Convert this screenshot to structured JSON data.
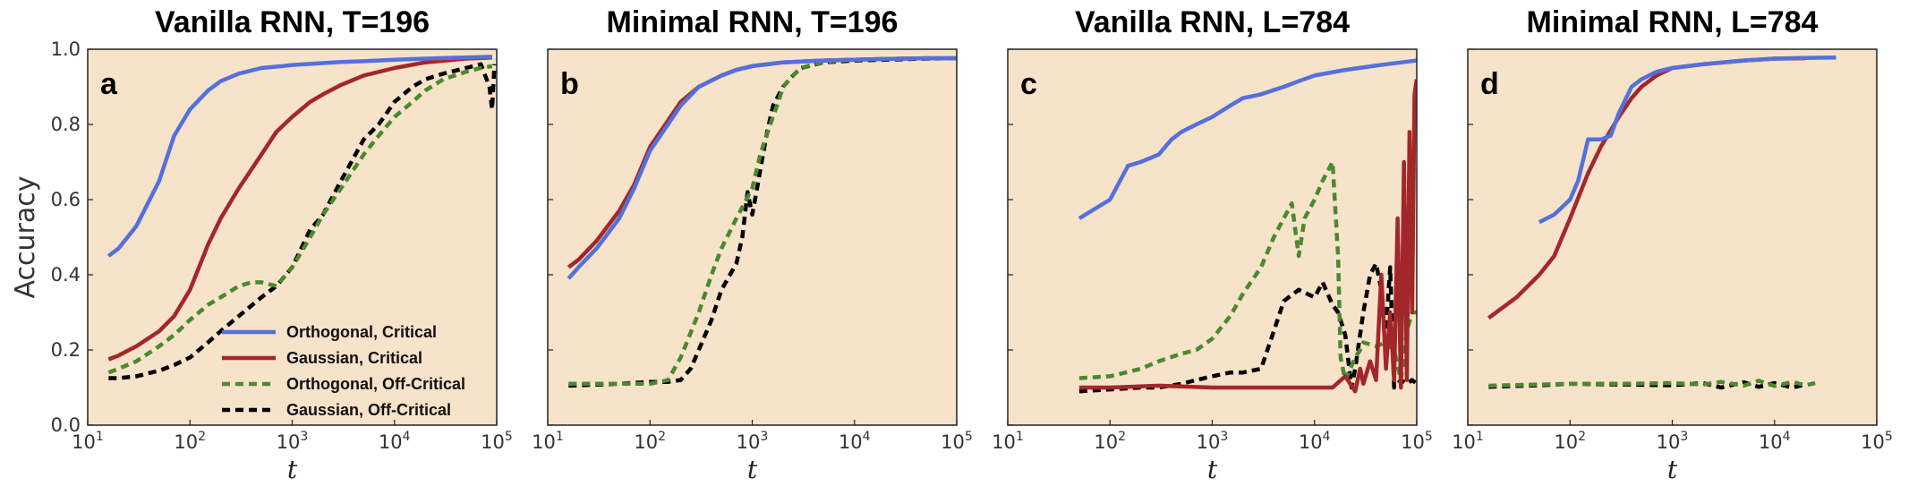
{
  "figure": {
    "background": "#ffffff",
    "plot_background": "#f7e2ca",
    "ylabel": "Accuracy",
    "xlabel": "t"
  },
  "colors": {
    "Orthogonal, Critical": "#5470db",
    "Gaussian, Critical": "#a3272a",
    "Orthogonal, Off-Critical": "#4a8a2c",
    "Gaussian, Off-Critical": "#000000"
  },
  "legend": {
    "panel": 0,
    "placement": "lower-right",
    "entries": [
      {
        "label": "Orthogonal, Critical",
        "dashed": false
      },
      {
        "label": "Gaussian, Critical",
        "dashed": false
      },
      {
        "label": "Orthogonal, Off-Critical",
        "dashed": true
      },
      {
        "label": "Gaussian, Off-Critical",
        "dashed": true
      }
    ]
  },
  "chart_data": [
    {
      "type": "line",
      "title": "Vanilla RNN, T=196",
      "panel_label": "a",
      "xscale": "log",
      "xlim": [
        10,
        100000
      ],
      "ylim": [
        0.0,
        1.0
      ],
      "xticks": [
        10,
        100,
        1000,
        10000,
        100000
      ],
      "yticks": [
        0.0,
        0.2,
        0.4,
        0.6,
        0.8,
        1.0
      ],
      "show_yticklabels": true,
      "grid": false,
      "series": [
        {
          "name": "Orthogonal, Critical",
          "dashed": false,
          "x": [
            16,
            20,
            30,
            50,
            70,
            100,
            150,
            200,
            300,
            500,
            800,
            1000,
            2000,
            3000,
            5000,
            10000,
            20000,
            50000,
            90000
          ],
          "y": [
            0.45,
            0.47,
            0.53,
            0.65,
            0.77,
            0.84,
            0.89,
            0.915,
            0.935,
            0.95,
            0.955,
            0.958,
            0.963,
            0.966,
            0.968,
            0.972,
            0.975,
            0.978,
            0.98
          ]
        },
        {
          "name": "Gaussian, Critical",
          "dashed": false,
          "x": [
            16,
            20,
            30,
            50,
            70,
            100,
            150,
            200,
            300,
            500,
            700,
            1000,
            1500,
            2000,
            3000,
            5000,
            10000,
            20000,
            50000,
            90000
          ],
          "y": [
            0.175,
            0.185,
            0.21,
            0.25,
            0.29,
            0.36,
            0.48,
            0.55,
            0.63,
            0.72,
            0.78,
            0.82,
            0.86,
            0.88,
            0.905,
            0.93,
            0.95,
            0.965,
            0.975,
            0.978
          ]
        },
        {
          "name": "Orthogonal, Off-Critical",
          "dashed": true,
          "x": [
            16,
            20,
            30,
            50,
            70,
            100,
            150,
            200,
            300,
            400,
            500,
            700,
            1000,
            1500,
            2000,
            3000,
            5000,
            7000,
            10000,
            15000,
            20000,
            30000,
            50000,
            70000,
            90000
          ],
          "y": [
            0.14,
            0.15,
            0.17,
            0.21,
            0.24,
            0.28,
            0.32,
            0.34,
            0.37,
            0.38,
            0.38,
            0.37,
            0.42,
            0.5,
            0.56,
            0.63,
            0.72,
            0.77,
            0.82,
            0.86,
            0.89,
            0.92,
            0.94,
            0.95,
            0.955
          ]
        },
        {
          "name": "Gaussian, Off-Critical",
          "dashed": true,
          "x": [
            16,
            20,
            30,
            50,
            70,
            100,
            150,
            200,
            300,
            500,
            700,
            1000,
            1500,
            2000,
            3000,
            5000,
            7000,
            10000,
            15000,
            20000,
            30000,
            50000,
            70000,
            85000,
            90000,
            95000
          ],
          "y": [
            0.125,
            0.125,
            0.13,
            0.145,
            0.16,
            0.18,
            0.22,
            0.25,
            0.29,
            0.34,
            0.37,
            0.42,
            0.52,
            0.56,
            0.65,
            0.76,
            0.8,
            0.86,
            0.9,
            0.92,
            0.935,
            0.95,
            0.96,
            0.9,
            0.84,
            0.96
          ]
        }
      ]
    },
    {
      "type": "line",
      "title": "Minimal RNN, T=196",
      "panel_label": "b",
      "xscale": "log",
      "xlim": [
        10,
        100000
      ],
      "ylim": [
        0.0,
        1.0
      ],
      "xticks": [
        10,
        100,
        1000,
        10000,
        100000
      ],
      "yticks": [
        0.0,
        0.2,
        0.4,
        0.6,
        0.8,
        1.0
      ],
      "show_yticklabels": false,
      "grid": false,
      "series": [
        {
          "name": "Orthogonal, Critical",
          "dashed": false,
          "x": [
            16,
            20,
            30,
            50,
            70,
            100,
            150,
            200,
            300,
            500,
            700,
            1000,
            2000,
            5000,
            10000,
            20000,
            50000,
            100000
          ],
          "y": [
            0.39,
            0.42,
            0.47,
            0.55,
            0.63,
            0.73,
            0.8,
            0.85,
            0.9,
            0.93,
            0.945,
            0.955,
            0.965,
            0.97,
            0.972,
            0.974,
            0.976,
            0.976
          ]
        },
        {
          "name": "Gaussian, Critical",
          "dashed": false,
          "x": [
            16,
            20,
            30,
            50,
            70,
            100,
            150,
            200,
            300,
            500,
            700,
            1000,
            2000,
            5000,
            10000,
            20000,
            50000,
            100000
          ],
          "y": [
            0.42,
            0.44,
            0.49,
            0.57,
            0.64,
            0.74,
            0.81,
            0.86,
            0.9,
            0.93,
            0.945,
            0.955,
            0.965,
            0.97,
            0.972,
            0.974,
            0.976,
            0.976
          ]
        },
        {
          "name": "Orthogonal, Off-Critical",
          "dashed": true,
          "x": [
            16,
            50,
            100,
            150,
            200,
            300,
            400,
            500,
            700,
            1000,
            1200,
            1500,
            1800,
            2000,
            2500,
            3000,
            4000,
            5000,
            7000,
            10000,
            20000,
            50000,
            100000
          ],
          "y": [
            0.11,
            0.11,
            0.11,
            0.12,
            0.18,
            0.3,
            0.4,
            0.47,
            0.55,
            0.63,
            0.72,
            0.8,
            0.86,
            0.9,
            0.93,
            0.95,
            0.96,
            0.965,
            0.97,
            0.972,
            0.974,
            0.976,
            0.976
          ]
        },
        {
          "name": "Gaussian, Off-Critical",
          "dashed": true,
          "x": [
            16,
            50,
            100,
            150,
            200,
            250,
            300,
            400,
            500,
            700,
            800,
            900,
            1000,
            1100,
            1200,
            1400,
            1600,
            2000,
            2500,
            3000,
            5000,
            10000,
            20000,
            50000,
            100000
          ],
          "y": [
            0.105,
            0.11,
            0.115,
            0.115,
            0.12,
            0.15,
            0.2,
            0.28,
            0.36,
            0.43,
            0.5,
            0.62,
            0.56,
            0.62,
            0.68,
            0.78,
            0.85,
            0.9,
            0.93,
            0.95,
            0.965,
            0.97,
            0.972,
            0.975,
            0.976
          ]
        }
      ]
    },
    {
      "type": "line",
      "title": "Vanilla RNN, L=784",
      "panel_label": "c",
      "xscale": "log",
      "xlim": [
        10,
        100000
      ],
      "ylim": [
        0.0,
        1.0
      ],
      "xticks": [
        10,
        100,
        1000,
        10000,
        100000
      ],
      "yticks": [
        0.0,
        0.2,
        0.4,
        0.6,
        0.8,
        1.0
      ],
      "show_yticklabels": false,
      "grid": false,
      "series": [
        {
          "name": "Orthogonal, Critical",
          "dashed": false,
          "x": [
            50,
            100,
            150,
            200,
            300,
            400,
            500,
            700,
            1000,
            1500,
            2000,
            3000,
            5000,
            7000,
            10000,
            20000,
            50000,
            100000
          ],
          "y": [
            0.55,
            0.6,
            0.69,
            0.7,
            0.72,
            0.76,
            0.78,
            0.8,
            0.82,
            0.85,
            0.87,
            0.88,
            0.9,
            0.915,
            0.93,
            0.945,
            0.96,
            0.97
          ]
        },
        {
          "name": "Gaussian, Critical",
          "dashed": false,
          "x": [
            50,
            100,
            300,
            1000,
            3000,
            10000,
            15000,
            20000,
            25000,
            28000,
            30000,
            35000,
            40000,
            45000,
            50000,
            55000,
            60000,
            65000,
            70000,
            75000,
            80000,
            85000,
            90000,
            95000,
            100000
          ],
          "y": [
            0.1,
            0.1,
            0.105,
            0.1,
            0.1,
            0.1,
            0.1,
            0.13,
            0.09,
            0.15,
            0.11,
            0.17,
            0.12,
            0.4,
            0.15,
            0.3,
            0.12,
            0.55,
            0.1,
            0.7,
            0.12,
            0.78,
            0.3,
            0.88,
            0.92
          ]
        },
        {
          "name": "Orthogonal, Off-Critical",
          "dashed": true,
          "x": [
            50,
            100,
            200,
            300,
            500,
            700,
            1000,
            1500,
            2000,
            3000,
            4000,
            5000,
            6000,
            7000,
            8000,
            10000,
            12000,
            15000,
            17000,
            18000,
            20000,
            25000,
            28000,
            30000,
            40000,
            50000,
            60000,
            70000,
            80000,
            90000,
            100000
          ],
          "y": [
            0.125,
            0.13,
            0.15,
            0.17,
            0.19,
            0.2,
            0.23,
            0.29,
            0.35,
            0.42,
            0.5,
            0.55,
            0.59,
            0.45,
            0.55,
            0.6,
            0.65,
            0.7,
            0.45,
            0.18,
            0.12,
            0.18,
            0.2,
            0.22,
            0.21,
            0.22,
            0.2,
            0.12,
            0.25,
            0.3,
            0.3
          ]
        },
        {
          "name": "Gaussian, Off-Critical",
          "dashed": true,
          "x": [
            50,
            100,
            200,
            300,
            500,
            700,
            1000,
            1500,
            2000,
            3000,
            4000,
            5000,
            7000,
            10000,
            12000,
            15000,
            17000,
            20000,
            23000,
            25000,
            30000,
            35000,
            40000,
            45000,
            50000,
            55000,
            60000,
            70000,
            80000,
            90000,
            100000
          ],
          "y": [
            0.09,
            0.095,
            0.1,
            0.1,
            0.11,
            0.12,
            0.13,
            0.14,
            0.14,
            0.15,
            0.25,
            0.33,
            0.36,
            0.34,
            0.38,
            0.32,
            0.3,
            0.24,
            0.1,
            0.15,
            0.3,
            0.4,
            0.43,
            0.36,
            0.25,
            0.42,
            0.1,
            0.12,
            0.11,
            0.12,
            0.11
          ]
        }
      ]
    },
    {
      "type": "line",
      "title": "Minimal RNN, L=784",
      "panel_label": "d",
      "xscale": "log",
      "xlim": [
        10,
        100000
      ],
      "ylim": [
        0.0,
        1.0
      ],
      "xticks": [
        10,
        100,
        1000,
        10000,
        100000
      ],
      "yticks": [
        0.0,
        0.2,
        0.4,
        0.6,
        0.8,
        1.0
      ],
      "show_yticklabels": false,
      "grid": false,
      "series": [
        {
          "name": "Orthogonal, Critical",
          "dashed": false,
          "x": [
            50,
            70,
            100,
            120,
            150,
            200,
            250,
            300,
            400,
            500,
            700,
            1000,
            2000,
            5000,
            10000,
            20000,
            40000
          ],
          "y": [
            0.54,
            0.56,
            0.6,
            0.65,
            0.76,
            0.76,
            0.77,
            0.83,
            0.9,
            0.92,
            0.94,
            0.95,
            0.96,
            0.97,
            0.975,
            0.977,
            0.978
          ]
        },
        {
          "name": "Gaussian, Critical",
          "dashed": false,
          "x": [
            16,
            30,
            50,
            70,
            100,
            150,
            200,
            300,
            400,
            500,
            700,
            1000,
            2000,
            5000,
            10000,
            20000
          ],
          "y": [
            0.285,
            0.34,
            0.4,
            0.45,
            0.55,
            0.67,
            0.74,
            0.82,
            0.87,
            0.9,
            0.93,
            0.95,
            0.96,
            0.97,
            0.975,
            0.976
          ]
        },
        {
          "name": "Orthogonal, Off-Critical",
          "dashed": true,
          "x": [
            16,
            50,
            100,
            300,
            1000,
            2000,
            3000,
            5000,
            7000,
            10000,
            15000,
            20000,
            25000
          ],
          "y": [
            0.105,
            0.108,
            0.11,
            0.11,
            0.112,
            0.108,
            0.115,
            0.105,
            0.118,
            0.104,
            0.115,
            0.106,
            0.112
          ]
        },
        {
          "name": "Gaussian, Off-Critical",
          "dashed": true,
          "x": [
            16,
            50,
            100,
            300,
            1000,
            2000,
            3000,
            5000,
            7000,
            10000,
            15000,
            20000
          ],
          "y": [
            0.102,
            0.106,
            0.11,
            0.108,
            0.106,
            0.112,
            0.1,
            0.114,
            0.102,
            0.112,
            0.1,
            0.108
          ]
        }
      ]
    }
  ]
}
